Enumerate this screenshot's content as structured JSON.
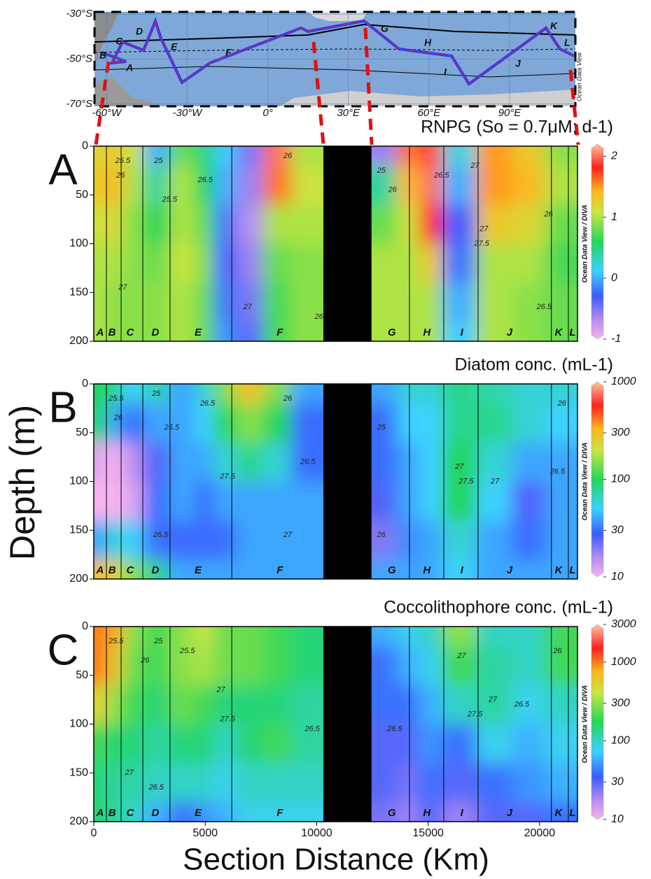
{
  "ylabel": "Depth (m)",
  "map": {
    "lonlim": [
      -64.5,
      114.5
    ],
    "latlim": [
      -71,
      -29
    ],
    "lat_ticks": [
      {
        "value": -30,
        "label": "-30°S"
      },
      {
        "value": -50,
        "label": "-50°S"
      },
      {
        "value": -70,
        "label": "-70°S"
      }
    ],
    "lon_ticks": [
      {
        "value": -60,
        "label": "-60°W"
      },
      {
        "value": -30,
        "label": "-30°W"
      },
      {
        "value": 0,
        "label": "0°"
      },
      {
        "value": 30,
        "label": "30°E"
      },
      {
        "value": 60,
        "label": "60°E"
      },
      {
        "value": 90,
        "label": "90°E"
      }
    ],
    "sections": [
      "A",
      "B",
      "C",
      "D",
      "E",
      "F",
      "G",
      "H",
      "I",
      "J",
      "K",
      "L"
    ],
    "label": "Ocean Data View"
  },
  "sections": {
    "labels": [
      "A",
      "B",
      "C",
      "D",
      "E",
      "F",
      "G",
      "H",
      "I",
      "J",
      "K",
      "L"
    ],
    "x": [
      280,
      820,
      1630,
      2760,
      4680,
      8350,
      13370,
      14940,
      16510,
      18650,
      20850,
      21480
    ],
    "bounds": [
      565,
      1225,
      2200,
      3420,
      6190,
      14160,
      15700,
      17240,
      20530,
      21290
    ],
    "gap": [
      10300,
      12460
    ]
  },
  "chart_data": [
    {
      "type": "section",
      "panel": "A",
      "title": "RNPG (So = 0.7μM; d-1)",
      "xlim": [
        0,
        21700
      ],
      "ylim": [
        200,
        0
      ],
      "yticks": [
        0,
        50,
        100,
        150,
        200
      ],
      "colorbar": {
        "lim": [
          -1,
          2.2
        ],
        "ticks": [
          2,
          1,
          0,
          -1
        ],
        "log": false,
        "label": "Ocean Data View / DIVA"
      },
      "field": {
        "x": [
          300,
          900,
          1700,
          2800,
          4000,
          5000,
          5800,
          7000,
          8200,
          9500,
          13000,
          14200,
          15000,
          16300,
          18000,
          19500,
          21000
        ],
        "depths": [
          0,
          40,
          80,
          120,
          160,
          200
        ],
        "values": [
          [
            1.2,
            1.3,
            1.1,
            0.0,
            0.8,
            0.5,
            0.1,
            -0.5,
            2.0,
            1.0,
            -0.6,
            1.6,
            1.9,
            0.2,
            1.5,
            1.3,
            0.9
          ],
          [
            1.3,
            1.4,
            1.0,
            0.4,
            1.0,
            0.6,
            0.0,
            -0.6,
            1.6,
            1.1,
            0.4,
            1.4,
            2.0,
            0.0,
            1.5,
            1.4,
            1.0
          ],
          [
            1.1,
            1.2,
            0.9,
            0.6,
            1.0,
            0.8,
            -0.2,
            -0.7,
            1.0,
            1.0,
            0.8,
            1.1,
            1.8,
            -0.3,
            1.3,
            1.2,
            0.8
          ],
          [
            1.0,
            1.0,
            0.9,
            0.8,
            1.1,
            0.9,
            -0.3,
            -0.6,
            0.8,
            0.9,
            1.0,
            1.0,
            1.3,
            -0.2,
            1.0,
            1.0,
            0.7
          ],
          [
            1.0,
            0.9,
            0.9,
            0.9,
            1.0,
            0.8,
            -0.2,
            -0.5,
            0.7,
            0.9,
            1.0,
            1.0,
            1.0,
            0.0,
            1.0,
            0.9,
            0.8
          ],
          [
            1.0,
            0.9,
            0.9,
            0.9,
            1.0,
            0.8,
            -0.1,
            -0.4,
            0.7,
            0.9,
            1.0,
            1.0,
            1.0,
            0.1,
            1.0,
            0.9,
            0.8
          ]
        ]
      },
      "annotations": [
        {
          "text": "25.5",
          "x": 1300,
          "depth": 15
        },
        {
          "text": "26",
          "x": 1200,
          "depth": 30
        },
        {
          "text": "25",
          "x": 2900,
          "depth": 15
        },
        {
          "text": "25.5",
          "x": 3400,
          "depth": 55
        },
        {
          "text": "26.5",
          "x": 5000,
          "depth": 35
        },
        {
          "text": "26",
          "x": 8700,
          "depth": 10
        },
        {
          "text": "27",
          "x": 6900,
          "depth": 165
        },
        {
          "text": "26",
          "x": 10100,
          "depth": 175
        },
        {
          "text": "25",
          "x": 12900,
          "depth": 25
        },
        {
          "text": "26",
          "x": 13400,
          "depth": 45
        },
        {
          "text": "26.5",
          "x": 15600,
          "depth": 30
        },
        {
          "text": "27",
          "x": 17100,
          "depth": 20
        },
        {
          "text": "27",
          "x": 17500,
          "depth": 85
        },
        {
          "text": "27.5",
          "x": 17400,
          "depth": 100
        },
        {
          "text": "26",
          "x": 20400,
          "depth": 70
        },
        {
          "text": "26.5",
          "x": 20200,
          "depth": 165
        },
        {
          "text": "27",
          "x": 1300,
          "depth": 145
        }
      ]
    },
    {
      "type": "section",
      "panel": "B",
      "title": "Diatom conc. (mL-1)",
      "xlim": [
        0,
        21700
      ],
      "ylim": [
        200,
        0
      ],
      "yticks": [
        0,
        50,
        100,
        150,
        200
      ],
      "colorbar": {
        "lim": [
          10,
          1000
        ],
        "ticks": [
          1000,
          300,
          100,
          30,
          10
        ],
        "log": true,
        "label": "Ocean Data View / DIVA"
      },
      "field": {
        "x": [
          300,
          900,
          1700,
          2800,
          4000,
          5000,
          5800,
          7000,
          8200,
          9500,
          13000,
          14200,
          15000,
          16300,
          18000,
          19500,
          21000
        ],
        "depths": [
          0,
          40,
          80,
          120,
          160,
          200
        ],
        "values": [
          [
            100,
            80,
            50,
            70,
            40,
            60,
            150,
            300,
            150,
            40,
            40,
            60,
            60,
            80,
            70,
            60,
            60
          ],
          [
            90,
            40,
            30,
            40,
            40,
            50,
            100,
            150,
            100,
            30,
            30,
            50,
            50,
            80,
            80,
            60,
            50
          ],
          [
            12,
            10,
            15,
            25,
            40,
            40,
            60,
            80,
            60,
            30,
            30,
            40,
            50,
            100,
            60,
            40,
            40
          ],
          [
            10,
            10,
            12,
            30,
            40,
            30,
            40,
            40,
            40,
            40,
            25,
            40,
            50,
            100,
            50,
            25,
            40
          ],
          [
            40,
            60,
            50,
            30,
            30,
            30,
            30,
            40,
            40,
            40,
            20,
            35,
            40,
            60,
            40,
            30,
            40
          ],
          [
            300,
            250,
            150,
            80,
            40,
            40,
            40,
            40,
            40,
            40,
            40,
            40,
            40,
            50,
            40,
            40,
            40
          ]
        ]
      },
      "annotations": [
        {
          "text": "25.5",
          "x": 1000,
          "depth": 15
        },
        {
          "text": "26",
          "x": 1100,
          "depth": 35
        },
        {
          "text": "25",
          "x": 2800,
          "depth": 10
        },
        {
          "text": "25.5",
          "x": 3500,
          "depth": 45
        },
        {
          "text": "26.5",
          "x": 5100,
          "depth": 20
        },
        {
          "text": "27.5",
          "x": 6000,
          "depth": 95
        },
        {
          "text": "26",
          "x": 8700,
          "depth": 15
        },
        {
          "text": "26.5",
          "x": 9600,
          "depth": 80
        },
        {
          "text": "26.5",
          "x": 3000,
          "depth": 155
        },
        {
          "text": "27",
          "x": 8700,
          "depth": 155
        },
        {
          "text": "25",
          "x": 12900,
          "depth": 45
        },
        {
          "text": "26",
          "x": 12900,
          "depth": 155
        },
        {
          "text": "27",
          "x": 16400,
          "depth": 85
        },
        {
          "text": "27.5",
          "x": 16700,
          "depth": 100
        },
        {
          "text": "27",
          "x": 18000,
          "depth": 100
        },
        {
          "text": "26",
          "x": 21000,
          "depth": 20
        },
        {
          "text": "26.5",
          "x": 20800,
          "depth": 90
        }
      ]
    },
    {
      "type": "section",
      "panel": "C",
      "title": "Coccolithophore conc. (mL-1)",
      "xlabel": "Section Distance (Km)",
      "xlim": [
        0,
        21700
      ],
      "xticks": [
        0,
        5000,
        10000,
        15000,
        20000
      ],
      "ylim": [
        200,
        0
      ],
      "yticks": [
        0,
        50,
        100,
        150,
        200
      ],
      "colorbar": {
        "lim": [
          10,
          3000
        ],
        "ticks": [
          3000,
          1000,
          300,
          100,
          30,
          10
        ],
        "log": true,
        "label": "Ocean Data View / DIVA"
      },
      "field": {
        "x": [
          300,
          900,
          1700,
          2800,
          4000,
          5000,
          5800,
          7000,
          8200,
          9500,
          13000,
          14200,
          15000,
          16300,
          18000,
          19500,
          21000
        ],
        "depths": [
          0,
          40,
          80,
          120,
          160,
          200
        ],
        "values": [
          [
            1000,
            800,
            300,
            200,
            300,
            400,
            250,
            250,
            200,
            150,
            60,
            80,
            100,
            300,
            100,
            100,
            200
          ],
          [
            1000,
            600,
            250,
            200,
            300,
            350,
            250,
            250,
            200,
            150,
            40,
            60,
            80,
            200,
            120,
            100,
            200
          ],
          [
            500,
            300,
            200,
            150,
            250,
            200,
            150,
            150,
            150,
            120,
            40,
            40,
            60,
            100,
            120,
            80,
            100
          ],
          [
            200,
            150,
            150,
            120,
            150,
            150,
            100,
            150,
            200,
            120,
            30,
            30,
            50,
            40,
            80,
            60,
            80
          ],
          [
            150,
            120,
            120,
            100,
            100,
            100,
            80,
            100,
            100,
            100,
            30,
            25,
            40,
            30,
            40,
            50,
            60
          ],
          [
            150,
            120,
            100,
            60,
            40,
            50,
            60,
            80,
            80,
            80,
            25,
            20,
            30,
            20,
            30,
            30,
            40
          ]
        ]
      },
      "annotations": [
        {
          "text": "25.5",
          "x": 1000,
          "depth": 15
        },
        {
          "text": "26",
          "x": 2300,
          "depth": 35
        },
        {
          "text": "25",
          "x": 2900,
          "depth": 15
        },
        {
          "text": "25.5",
          "x": 4200,
          "depth": 25
        },
        {
          "text": "27",
          "x": 5700,
          "depth": 65
        },
        {
          "text": "27.5",
          "x": 6000,
          "depth": 95
        },
        {
          "text": "26.5",
          "x": 9800,
          "depth": 105
        },
        {
          "text": "27",
          "x": 1600,
          "depth": 150
        },
        {
          "text": "26.5",
          "x": 2800,
          "depth": 165
        },
        {
          "text": "26.5",
          "x": 13500,
          "depth": 105
        },
        {
          "text": "27.5",
          "x": 17100,
          "depth": 90
        },
        {
          "text": "27",
          "x": 17900,
          "depth": 75
        },
        {
          "text": "26.5",
          "x": 19200,
          "depth": 80
        },
        {
          "text": "27",
          "x": 16500,
          "depth": 30
        },
        {
          "text": "26",
          "x": 20800,
          "depth": 25
        }
      ]
    }
  ]
}
